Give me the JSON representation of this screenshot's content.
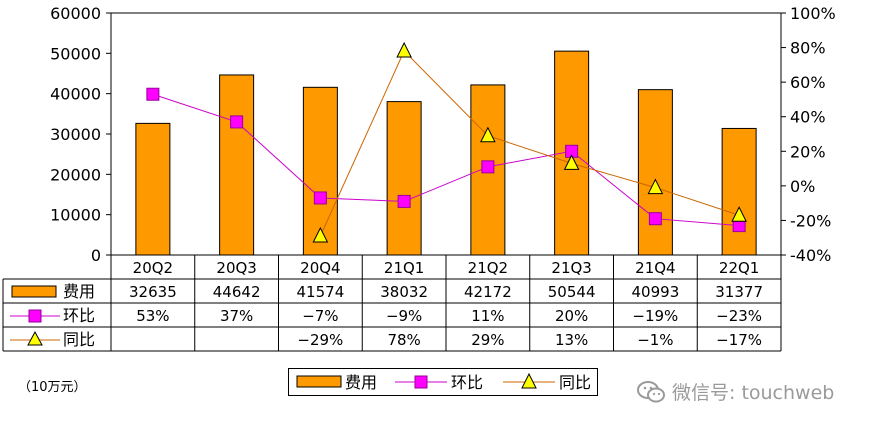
{
  "chart_data": {
    "type": "bar",
    "categories": [
      "20Q2",
      "20Q3",
      "20Q4",
      "21Q1",
      "21Q2",
      "21Q3",
      "21Q4",
      "22Q1"
    ],
    "left_axis": {
      "ticks": [
        "60000",
        "50000",
        "40000",
        "30000",
        "20000",
        "10000",
        "0"
      ],
      "ylim": [
        0,
        60000
      ]
    },
    "right_axis": {
      "ticks": [
        "100%",
        "80%",
        "60%",
        "40%",
        "20%",
        "0%",
        "-20%",
        "-40%"
      ],
      "ylim": [
        -40,
        100
      ]
    },
    "series": [
      {
        "name": "费用",
        "kind": "bar",
        "axis": "left",
        "color": "#ff9900",
        "values": [
          32635,
          44642,
          41574,
          38032,
          42172,
          50544,
          40993,
          31377
        ],
        "labels": [
          "32635",
          "44642",
          "41574",
          "38032",
          "42172",
          "50544",
          "40993",
          "31377"
        ]
      },
      {
        "name": "环比",
        "kind": "line",
        "axis": "right",
        "color": "#cc00cc",
        "marker": "square",
        "marker_color": "#ff00ff",
        "values": [
          53,
          37,
          -7,
          -9,
          11,
          20,
          -19,
          -23
        ],
        "labels": [
          "53%",
          "37%",
          "−7%",
          "−9%",
          "11%",
          "20%",
          "−19%",
          "−23%"
        ]
      },
      {
        "name": "同比",
        "kind": "line",
        "axis": "right",
        "color": "#cc6600",
        "marker": "triangle",
        "marker_color": "#ffff00",
        "values": [
          null,
          null,
          -29,
          78,
          29,
          13,
          -1,
          -17
        ],
        "labels": [
          "",
          "",
          "−29%",
          "78%",
          "29%",
          "13%",
          "−1%",
          "−17%"
        ]
      }
    ],
    "legend": {
      "position": "bottom",
      "items": [
        "费用",
        "环比",
        "同比"
      ]
    },
    "grid": false
  },
  "unit_note": "（10万元）",
  "watermark": {
    "text": "微信号: touchweb",
    "icon": "wechat-icon"
  }
}
